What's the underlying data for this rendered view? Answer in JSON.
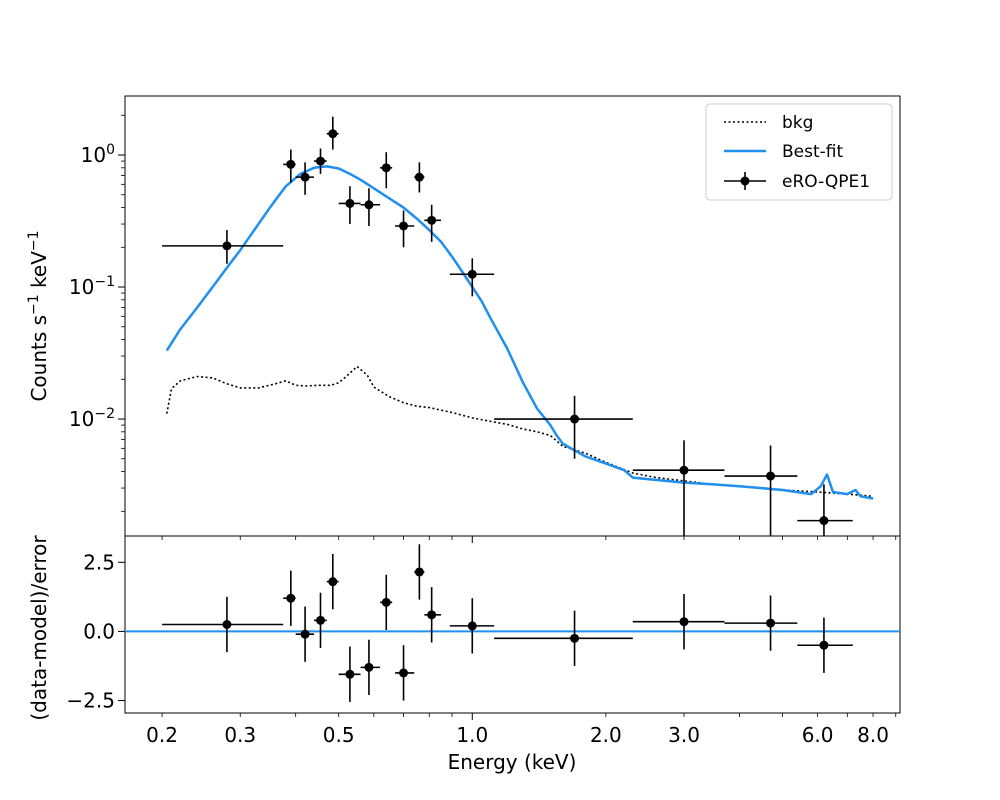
{
  "chart_data": [
    {
      "type": "line",
      "panel": "spectrum",
      "xlabel": "Energy (keV)",
      "ylabel": "Counts s⁻¹ keV⁻¹",
      "xscale": "log",
      "yscale": "log",
      "xlim": [
        0.165,
        9.2
      ],
      "ylim": [
        0.0013,
        2.8
      ],
      "yticks": [
        {
          "value": 1.0,
          "base": "10",
          "exp": "0"
        },
        {
          "value": 0.1,
          "base": "10",
          "exp": "−1"
        },
        {
          "value": 0.01,
          "base": "10",
          "exp": "−2"
        }
      ],
      "legend": {
        "location": "top-right",
        "entries": [
          {
            "label": "bkg",
            "style": "dotted",
            "color": "#000000"
          },
          {
            "label": "Best-fit",
            "style": "solid",
            "color": "#1f8ff0"
          },
          {
            "label": "eRO-QPE1",
            "style": "errorbar",
            "color": "#000000"
          }
        ]
      },
      "series": [
        {
          "name": "bkg",
          "color": "#000000",
          "x": [
            0.205,
            0.21,
            0.22,
            0.24,
            0.26,
            0.28,
            0.3,
            0.33,
            0.36,
            0.38,
            0.4,
            0.42,
            0.45,
            0.48,
            0.5,
            0.52,
            0.55,
            0.58,
            0.6,
            0.62,
            0.65,
            0.7,
            0.75,
            0.8,
            0.9,
            1.0,
            1.1,
            1.2,
            1.3,
            1.4,
            1.5,
            1.6,
            1.8,
            2.0,
            2.3,
            2.6,
            3.0,
            3.5,
            4.0,
            5.0,
            6.0,
            7.0,
            8.0
          ],
          "y": [
            0.011,
            0.017,
            0.0195,
            0.021,
            0.0205,
            0.0185,
            0.0172,
            0.0172,
            0.0185,
            0.0195,
            0.018,
            0.0178,
            0.018,
            0.018,
            0.0188,
            0.021,
            0.025,
            0.0215,
            0.0175,
            0.0163,
            0.0148,
            0.0133,
            0.0125,
            0.0122,
            0.0112,
            0.0102,
            0.0096,
            0.0091,
            0.0084,
            0.008,
            0.0075,
            0.0062,
            0.0055,
            0.0047,
            0.0039,
            0.0036,
            0.0034,
            0.0032,
            0.0031,
            0.0029,
            0.0028,
            0.0027,
            0.0026
          ]
        },
        {
          "name": "Best-fit",
          "color": "#1f8ff0",
          "x": [
            0.205,
            0.22,
            0.24,
            0.26,
            0.28,
            0.3,
            0.32,
            0.35,
            0.38,
            0.41,
            0.44,
            0.47,
            0.5,
            0.53,
            0.56,
            0.6,
            0.65,
            0.7,
            0.75,
            0.8,
            0.85,
            0.9,
            0.95,
            1.0,
            1.05,
            1.1,
            1.2,
            1.3,
            1.4,
            1.5,
            1.55,
            1.6,
            1.7,
            1.8,
            2.0,
            2.2,
            2.3,
            2.5,
            3.0,
            3.5,
            4.0,
            5.0,
            5.8,
            6.1,
            6.3,
            6.5,
            7.0,
            7.3,
            7.5,
            8.0
          ],
          "y": [
            0.033,
            0.048,
            0.07,
            0.1,
            0.14,
            0.19,
            0.26,
            0.4,
            0.58,
            0.72,
            0.8,
            0.82,
            0.79,
            0.72,
            0.65,
            0.56,
            0.47,
            0.4,
            0.33,
            0.27,
            0.22,
            0.17,
            0.13,
            0.1,
            0.078,
            0.058,
            0.034,
            0.019,
            0.012,
            0.009,
            0.0075,
            0.0065,
            0.0058,
            0.0052,
            0.0046,
            0.0041,
            0.0036,
            0.0035,
            0.0033,
            0.0032,
            0.0031,
            0.0029,
            0.0027,
            0.0031,
            0.0038,
            0.0028,
            0.0027,
            0.0029,
            0.0026,
            0.0025
          ]
        }
      ],
      "points": {
        "name": "eRO-QPE1",
        "x": [
          0.28,
          0.39,
          0.42,
          0.455,
          0.485,
          0.53,
          0.585,
          0.64,
          0.7,
          0.76,
          0.81,
          1.0,
          1.7,
          3.0,
          4.7,
          6.2
        ],
        "xlo": [
          0.2,
          0.375,
          0.4,
          0.44,
          0.47,
          0.5,
          0.56,
          0.62,
          0.67,
          0.74,
          0.78,
          0.89,
          1.12,
          2.3,
          3.7,
          5.4
        ],
        "xhi": [
          0.375,
          0.4,
          0.44,
          0.47,
          0.5,
          0.56,
          0.62,
          0.66,
          0.74,
          0.78,
          0.85,
          1.12,
          2.3,
          3.7,
          5.4,
          7.2
        ],
        "y": [
          0.205,
          0.85,
          0.68,
          0.9,
          1.45,
          0.43,
          0.42,
          0.8,
          0.29,
          0.68,
          0.32,
          0.125,
          0.01,
          0.0041,
          0.0037,
          0.0017
        ],
        "ylo": [
          0.15,
          0.62,
          0.5,
          0.72,
          1.1,
          0.3,
          0.29,
          0.56,
          0.2,
          0.52,
          0.22,
          0.085,
          0.005,
          0.0013,
          0.0013,
          0.0013
        ],
        "yhi": [
          0.27,
          1.1,
          0.88,
          1.12,
          1.95,
          0.58,
          0.56,
          1.05,
          0.38,
          0.88,
          0.42,
          0.165,
          0.015,
          0.0069,
          0.0063,
          0.0032
        ]
      }
    },
    {
      "type": "scatter",
      "panel": "residuals",
      "xlabel": "Energy (keV)",
      "ylabel": "(data-model)/error",
      "xscale": "log",
      "xlim": [
        0.165,
        9.2
      ],
      "ylim": [
        -2.95,
        3.45
      ],
      "yticks": [
        2.5,
        0.0,
        -2.5
      ],
      "ytick_labels": [
        "2.5",
        "0.0",
        "−2.5"
      ],
      "xticks": [
        0.2,
        0.3,
        0.5,
        1.0,
        2.0,
        3.0,
        6.0,
        8.0
      ],
      "xtick_labels": [
        "0.2",
        "0.3",
        "0.5",
        "1.0",
        "2.0",
        "3.0",
        "6.0",
        "8.0"
      ],
      "zero_line_color": "#1f8ff0",
      "points": {
        "x": [
          0.28,
          0.39,
          0.42,
          0.455,
          0.485,
          0.53,
          0.585,
          0.64,
          0.7,
          0.76,
          0.81,
          1.0,
          1.7,
          3.0,
          4.7,
          6.2
        ],
        "xlo": [
          0.2,
          0.375,
          0.4,
          0.44,
          0.47,
          0.5,
          0.56,
          0.62,
          0.67,
          0.74,
          0.78,
          0.89,
          1.12,
          2.3,
          3.7,
          5.4
        ],
        "xhi": [
          0.375,
          0.4,
          0.44,
          0.47,
          0.5,
          0.56,
          0.62,
          0.66,
          0.74,
          0.78,
          0.85,
          1.12,
          2.3,
          3.7,
          5.4,
          7.2
        ],
        "y": [
          0.25,
          1.2,
          -0.1,
          0.4,
          1.8,
          -1.55,
          -1.3,
          1.05,
          -1.5,
          2.15,
          0.6,
          0.2,
          -0.25,
          0.35,
          0.3,
          -0.5
        ]
      }
    }
  ]
}
